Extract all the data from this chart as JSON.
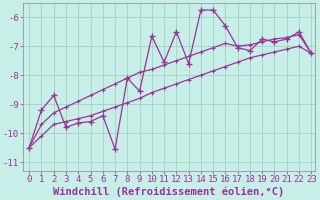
{
  "title": "",
  "xlabel": "Windchill (Refroidissement éolien,°C)",
  "background_color": "#c8eee8",
  "grid_color": "#99ccbb",
  "line_color": "#993399",
  "xlim": [
    -0.5,
    23.3
  ],
  "ylim": [
    -11.3,
    -5.5
  ],
  "yticks": [
    -11,
    -10,
    -9,
    -8,
    -7,
    -6
  ],
  "xticks": [
    0,
    1,
    2,
    3,
    4,
    5,
    6,
    7,
    8,
    9,
    10,
    11,
    12,
    13,
    14,
    15,
    16,
    17,
    18,
    19,
    20,
    21,
    22,
    23
  ],
  "x": [
    0,
    1,
    2,
    3,
    4,
    5,
    6,
    7,
    8,
    9,
    10,
    11,
    12,
    13,
    14,
    15,
    16,
    17,
    18,
    19,
    20,
    21,
    22,
    23
  ],
  "y_data": [
    -10.5,
    -9.2,
    -8.7,
    -9.8,
    -9.65,
    -9.6,
    -9.4,
    -10.55,
    -8.1,
    -8.55,
    -6.65,
    -7.55,
    -6.5,
    -7.6,
    -5.75,
    -5.75,
    -6.3,
    -7.05,
    -7.15,
    -6.75,
    -6.85,
    -6.75,
    -6.5,
    -7.25
  ],
  "y_upper_trend": [
    -10.5,
    -9.7,
    -9.3,
    -9.1,
    -8.9,
    -8.7,
    -8.5,
    -8.3,
    -8.1,
    -7.9,
    -7.8,
    -7.65,
    -7.5,
    -7.35,
    -7.2,
    -7.05,
    -6.9,
    -7.0,
    -6.95,
    -6.85,
    -6.75,
    -6.7,
    -6.6,
    -7.25
  ],
  "y_lower_trend": [
    -10.5,
    -10.1,
    -9.7,
    -9.6,
    -9.5,
    -9.4,
    -9.25,
    -9.1,
    -8.95,
    -8.8,
    -8.6,
    -8.45,
    -8.3,
    -8.15,
    -8.0,
    -7.85,
    -7.7,
    -7.55,
    -7.4,
    -7.3,
    -7.2,
    -7.1,
    -7.0,
    -7.25
  ],
  "xlabel_fontsize": 7.5,
  "tick_fontsize": 6.5
}
